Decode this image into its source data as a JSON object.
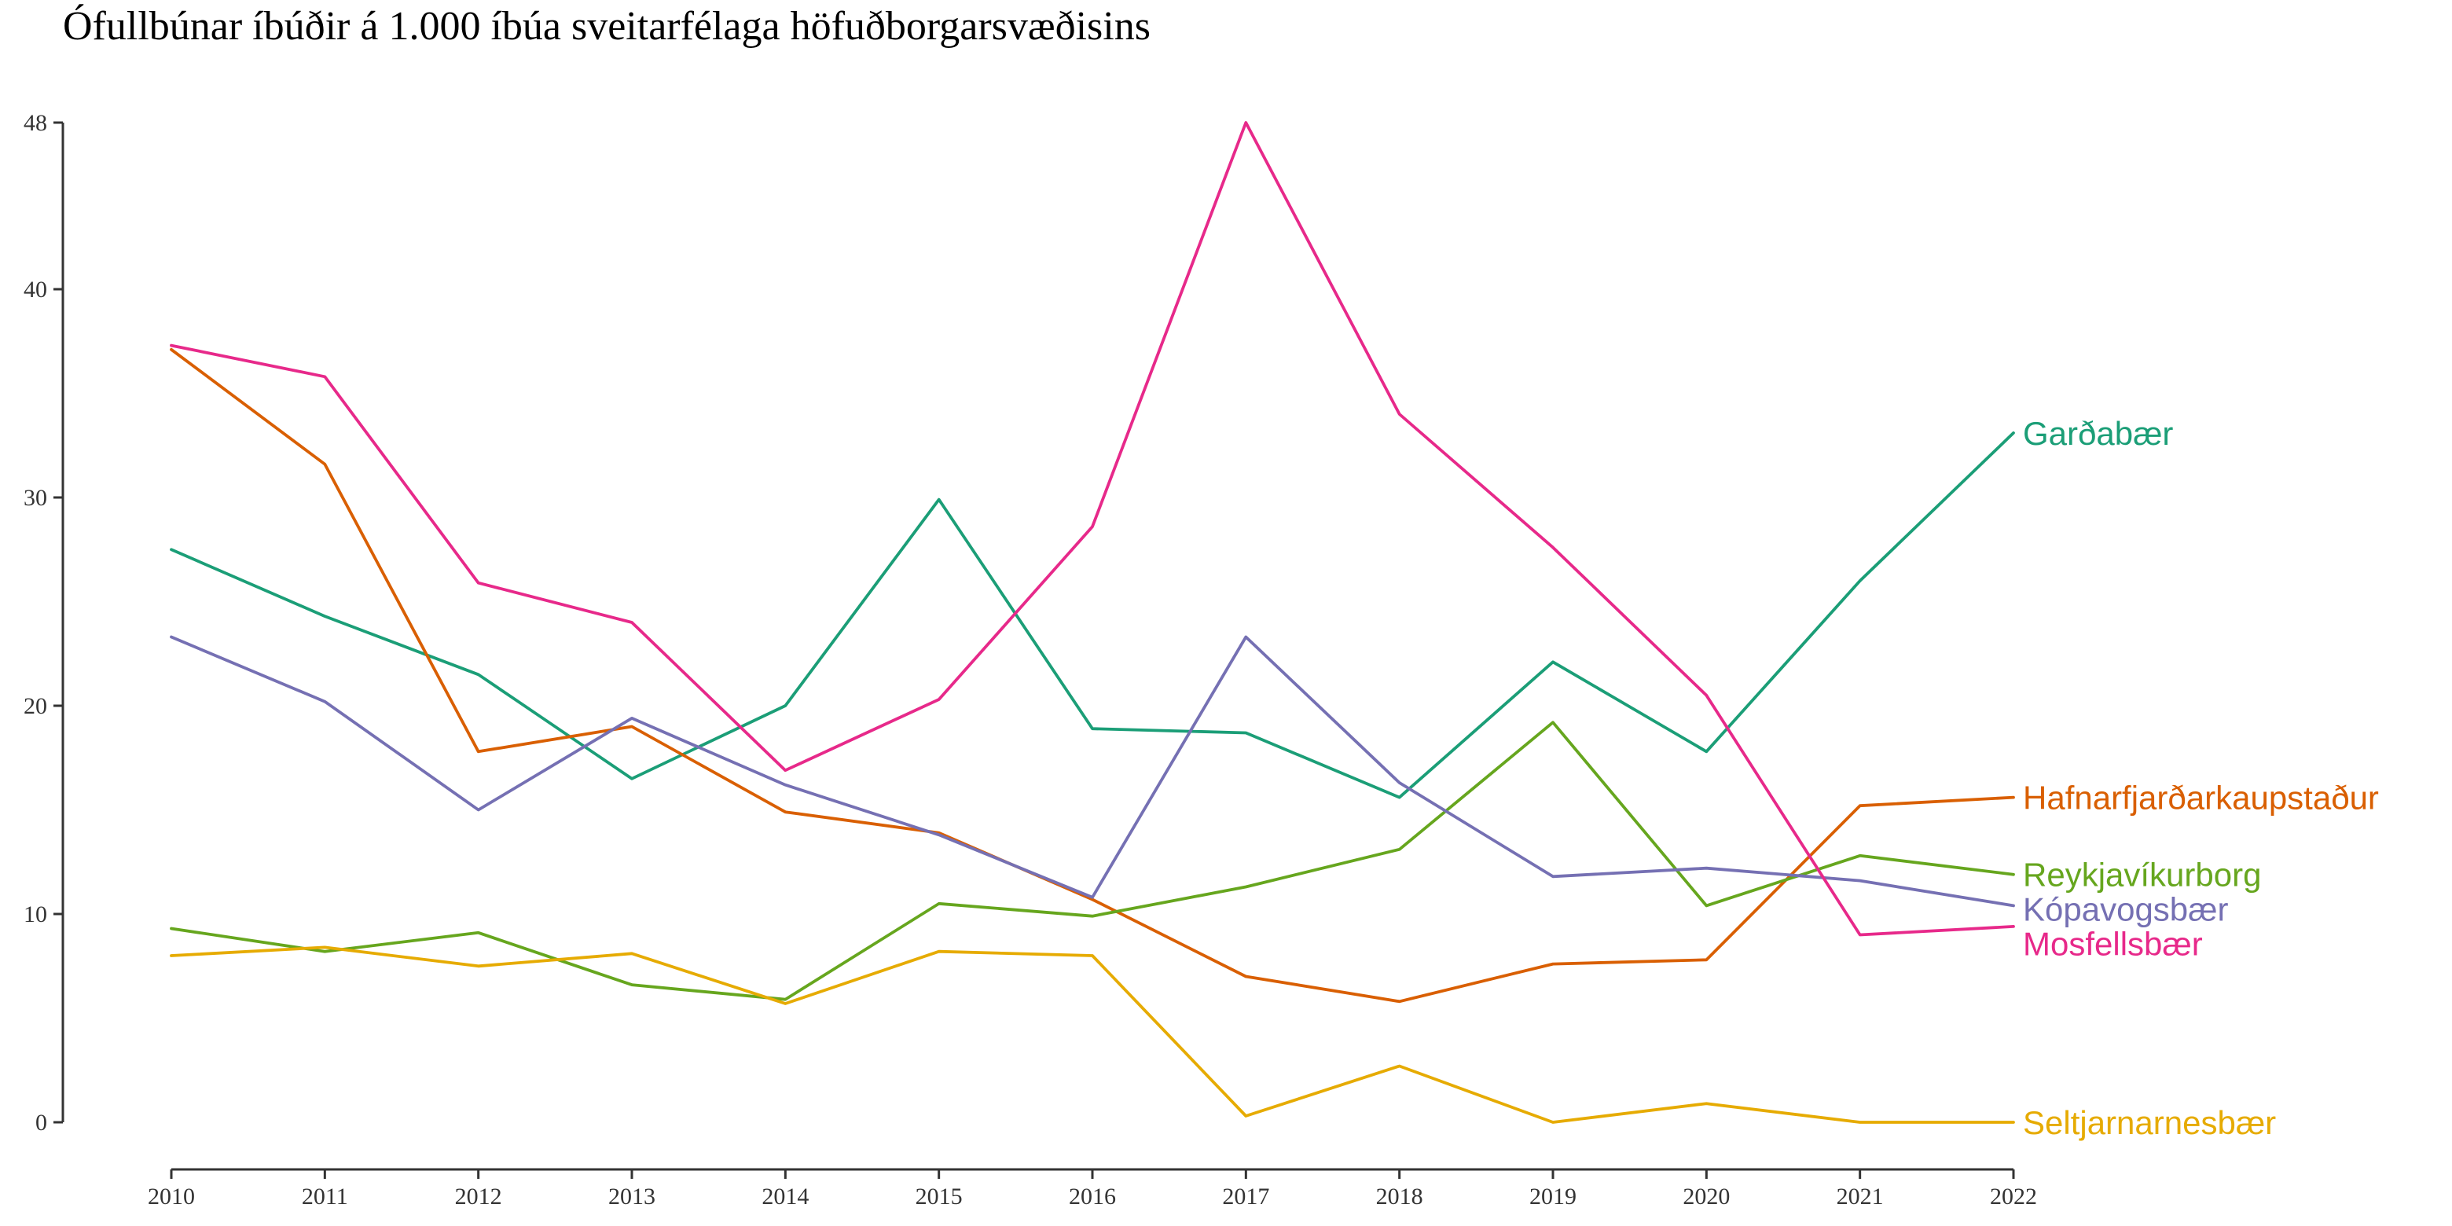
{
  "chart_data": {
    "type": "line",
    "title": "Ófullbúnar íbúðir á 1.000 íbúa sveitarfélaga höfuðborgarsvæðisins",
    "xlabel": "",
    "ylabel": "",
    "x": [
      2010,
      2011,
      2012,
      2013,
      2014,
      2015,
      2016,
      2017,
      2018,
      2019,
      2020,
      2021,
      2022
    ],
    "x_ticks": [
      "2010",
      "2011",
      "2012",
      "2013",
      "2014",
      "2015",
      "2016",
      "2017",
      "2018",
      "2019",
      "2020",
      "2021",
      "2022"
    ],
    "y_ticks": [
      0,
      10,
      20,
      30,
      40,
      48
    ],
    "ylim": [
      0,
      48
    ],
    "grid": false,
    "legend": "direct labels at line ends",
    "series": [
      {
        "name": "Garðabær",
        "color": "#1b9e77",
        "values": [
          27.5,
          24.3,
          21.5,
          16.5,
          20.0,
          29.9,
          18.9,
          18.7,
          15.6,
          22.1,
          17.8,
          26.0,
          33.1
        ]
      },
      {
        "name": "Hafnarfjarðarkaupstaður",
        "color": "#d95f02",
        "values": [
          37.1,
          31.6,
          17.8,
          19.0,
          14.9,
          13.9,
          10.7,
          7.0,
          5.8,
          7.6,
          7.8,
          15.2,
          15.6
        ]
      },
      {
        "name": "Reykjavíkurborg",
        "color": "#66a61e",
        "values": [
          9.3,
          8.2,
          9.1,
          6.6,
          5.9,
          10.5,
          9.9,
          11.3,
          13.1,
          19.2,
          10.4,
          12.8,
          11.9
        ]
      },
      {
        "name": "Kópavogsbær",
        "color": "#7570b3",
        "values": [
          23.3,
          20.2,
          15.0,
          19.4,
          16.2,
          13.8,
          10.8,
          23.3,
          16.3,
          11.8,
          12.2,
          11.6,
          10.4
        ]
      },
      {
        "name": "Mosfellsbær",
        "color": "#e7298a",
        "values": [
          37.3,
          35.8,
          25.9,
          24.0,
          16.9,
          20.3,
          28.6,
          48.0,
          34.0,
          27.6,
          20.5,
          9.0,
          9.4
        ]
      },
      {
        "name": "Seltjarnarnesbær",
        "color": "#e6ab02",
        "values": [
          8.0,
          8.4,
          7.5,
          8.1,
          5.7,
          8.2,
          8.0,
          0.3,
          2.7,
          0.0,
          0.9,
          0.0,
          0.0
        ]
      }
    ]
  }
}
